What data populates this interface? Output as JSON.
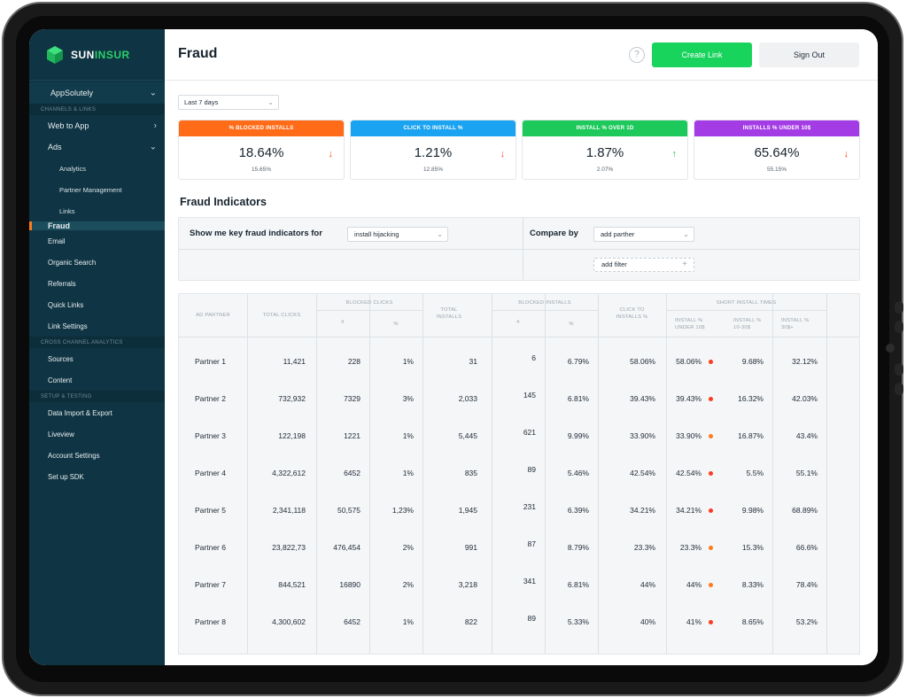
{
  "brand": {
    "name_a": "SUN",
    "name_b": "INSUR",
    "green": "#2bd06a"
  },
  "sidebar": {
    "app": "AppSolutely",
    "sections": {
      "channels": "CHANNELS & LINKS",
      "cross": "CROSS CHANNEL ANALYTICS",
      "setup": "SETUP & TESTING"
    },
    "items": {
      "web_to_app": "Web to App",
      "ads": "Ads",
      "analytics": "Analytics",
      "partner_management": "Partner Management",
      "links": "Links",
      "fraud": "Fraud",
      "email": "Email",
      "organic_search": "Organic Search",
      "referrals": "Referrals",
      "quick_links": "Quick Links",
      "link_settings": "Link Settings",
      "sources": "Sources",
      "content": "Content",
      "data_import": "Data Import & Export",
      "liveview": "Liveview",
      "account_settings": "Account Settings",
      "setup_sdk": "Set up SDK"
    }
  },
  "header": {
    "title": "Fraud",
    "help": "?",
    "create_link": "Create Link",
    "sign_out": "Sign Out"
  },
  "range": {
    "value": "Last 7 days"
  },
  "kpis": [
    {
      "label": "% BLOCKED INSTALLS",
      "value": "18.64%",
      "sub": "15.65%",
      "color": "#ff6b16",
      "trend": "down"
    },
    {
      "label": "CLICK TO INSTALL %",
      "value": "1.21%",
      "sub": "12.85%",
      "color": "#1aa3f0",
      "trend": "down"
    },
    {
      "label": "INSTALL % OVER 1D",
      "value": "1.87%",
      "sub": "2.07%",
      "color": "#1cc95a",
      "trend": "up"
    },
    {
      "label": "INSTALLS % UNDER 10$",
      "value": "65.64%",
      "sub": "55.15%",
      "color": "#a43ce6",
      "trend": "down"
    }
  ],
  "indicators": {
    "title": "Fraud Indicators",
    "show_label": "Show me key fraud indicators for",
    "show_value": "install hijacking",
    "compare_label": "Compare by",
    "compare_value": "add parther",
    "add_filter": "add filter"
  },
  "table": {
    "headers": {
      "ad_partner": "AD PARTNER",
      "total_clicks": "TOTAL CLICKS",
      "blocked_clicks": "BLOCKED CLICKS",
      "hash": "#",
      "pct": "%",
      "total_installs_1": "TOTAL",
      "total_installs_2": "INSTALLS",
      "blocked_installs": "BLOCKED INSTALLS",
      "c2i_1": "CLICK TO",
      "c2i_2": "INSTALLS %",
      "short": "SHORT INSTALL TIMES",
      "s1_1": "INSTALL %",
      "s1_2": "UNDER 10$",
      "s2_1": "INSTALL %",
      "s2_2": "10-30$",
      "s3_1": "INSTALL %",
      "s3_2": "30$+"
    },
    "rows": [
      {
        "partner": "Partner 1",
        "clicks": "11,421",
        "bc": "228",
        "bcp": "1%",
        "installs": "31",
        "bi": "6",
        "bip": "6.79%",
        "c2i": "58.06%",
        "u10": "58.06%",
        "dot": "#ff3b1f",
        "m": "9.68%",
        "o": "32.12%"
      },
      {
        "partner": "Partner 2",
        "clicks": "732,932",
        "bc": "7329",
        "bcp": "3%",
        "installs": "2,033",
        "bi": "145",
        "bip": "6.81%",
        "c2i": "39.43%",
        "u10": "39.43%",
        "dot": "#ff3b1f",
        "m": "16.32%",
        "o": "42.03%"
      },
      {
        "partner": "Partner 3",
        "clicks": "122,198",
        "bc": "1221",
        "bcp": "1%",
        "installs": "5,445",
        "bi": "621",
        "bip": "9.99%",
        "c2i": "33.90%",
        "u10": "33.90%",
        "dot": "#ff7a1a",
        "m": "16.87%",
        "o": "43.4%"
      },
      {
        "partner": "Partner 4",
        "clicks": "4,322,612",
        "bc": "6452",
        "bcp": "1%",
        "installs": "835",
        "bi": "89",
        "bip": "5.46%",
        "c2i": "42.54%",
        "u10": "42.54%",
        "dot": "#ff3b1f",
        "m": "5.5%",
        "o": "55.1%"
      },
      {
        "partner": "Partner 5",
        "clicks": "2,341,118",
        "bc": "50,575",
        "bcp": "1,23%",
        "installs": "1,945",
        "bi": "231",
        "bip": "6.39%",
        "c2i": "34.21%",
        "u10": "34.21%",
        "dot": "#ff3b1f",
        "m": "9.98%",
        "o": "68.89%"
      },
      {
        "partner": "Partner 6",
        "clicks": "23,822,73",
        "bc": "476,454",
        "bcp": "2%",
        "installs": "991",
        "bi": "87",
        "bip": "8.79%",
        "c2i": "23.3%",
        "u10": "23.3%",
        "dot": "#ff7a1a",
        "m": "15.3%",
        "o": "66.6%"
      },
      {
        "partner": "Partner 7",
        "clicks": "844,521",
        "bc": "16890",
        "bcp": "2%",
        "installs": "3,218",
        "bi": "341",
        "bip": "6.81%",
        "c2i": "44%",
        "u10": "44%",
        "dot": "#ff7a1a",
        "m": "8.33%",
        "o": "78.4%"
      },
      {
        "partner": "Partner 8",
        "clicks": "4,300,602",
        "bc": "6452",
        "bcp": "1%",
        "installs": "822",
        "bi": "89",
        "bip": "5.33%",
        "c2i": "40%",
        "u10": "41%",
        "dot": "#ff3b1f",
        "m": "8.65%",
        "o": "53.2%"
      }
    ]
  }
}
